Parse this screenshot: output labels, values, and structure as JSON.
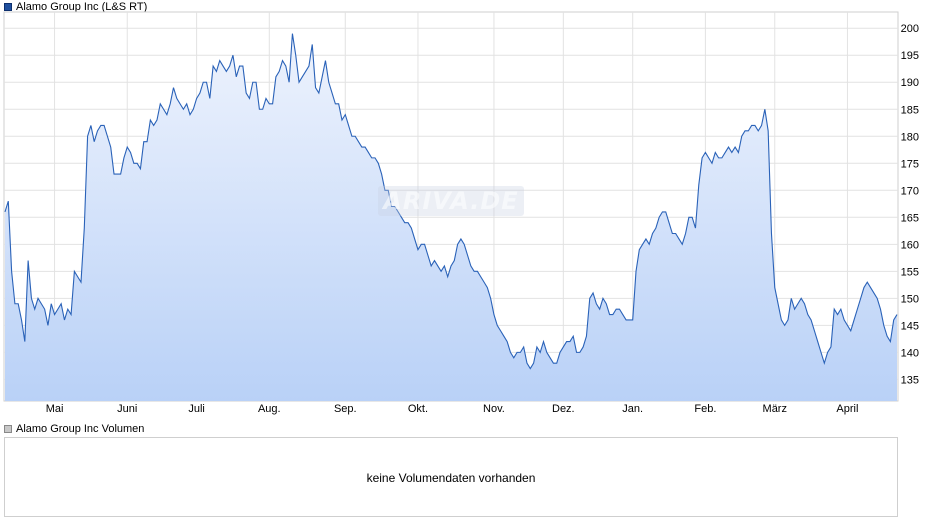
{
  "legend": {
    "price_label": "Alamo Group Inc (L&S RT)",
    "volume_label": "Alamo Group Inc Volumen"
  },
  "volume": {
    "message": "keine Volumendaten vorhanden"
  },
  "watermark": "ARIVA.DE",
  "chart_data": {
    "type": "area",
    "title": "",
    "xlabel": "",
    "ylabel": "",
    "ylim": [
      131,
      203
    ],
    "y_ticks": [
      135,
      140,
      145,
      150,
      155,
      160,
      165,
      170,
      175,
      180,
      185,
      190,
      195,
      200
    ],
    "x_ticks": [
      "Mai",
      "Juni",
      "Juli",
      "Aug.",
      "Sep.",
      "Okt.",
      "Nov.",
      "Dez.",
      "Jan.",
      "Feb.",
      "März",
      "April"
    ],
    "x_tick_index": [
      15,
      37,
      58,
      80,
      103,
      125,
      148,
      169,
      190,
      212,
      233,
      255
    ],
    "grid": true,
    "legend_position": "top-left",
    "colors": {
      "line": "#2a62b8",
      "fill_top": "#eef3fd",
      "fill_bottom": "#b9d1f7",
      "grid": "#e2e2e2"
    },
    "series": [
      {
        "values": [
          166,
          168,
          155,
          149,
          149,
          146,
          142,
          157,
          150,
          148,
          150,
          149,
          148,
          145,
          149,
          147,
          148,
          149,
          146,
          148,
          147,
          155,
          154,
          153,
          163,
          180,
          182,
          179,
          181,
          182,
          182,
          180,
          178,
          173,
          173,
          173,
          176,
          178,
          177,
          175,
          175,
          174,
          179,
          179,
          183,
          182,
          183,
          186,
          185,
          184,
          186,
          189,
          187,
          186,
          185,
          186,
          184,
          185,
          187,
          188,
          190,
          190,
          187,
          193,
          192,
          194,
          193,
          192,
          193,
          195,
          191,
          193,
          193,
          188,
          187,
          190,
          190,
          185,
          185,
          187,
          186,
          186,
          191,
          192,
          194,
          193,
          190,
          199,
          195,
          190,
          191,
          192,
          193,
          197,
          189,
          188,
          191,
          194,
          190,
          188,
          186,
          186,
          183,
          184,
          182,
          180,
          180,
          179,
          178,
          178,
          177,
          176,
          176,
          175,
          173,
          170,
          170,
          167,
          167,
          166,
          165,
          164,
          164,
          163,
          161,
          159,
          160,
          160,
          158,
          156,
          157,
          156,
          155,
          156,
          154,
          156,
          157,
          160,
          161,
          160,
          158,
          156,
          155,
          155,
          154,
          153,
          152,
          150,
          147,
          145,
          144,
          143,
          142,
          140,
          139,
          140,
          140,
          141,
          138,
          137,
          138,
          141,
          140,
          142,
          140,
          139,
          138,
          138,
          140,
          141,
          142,
          142,
          143,
          140,
          140,
          141,
          143,
          150,
          151,
          149,
          148,
          150,
          149,
          147,
          147,
          148,
          148,
          147,
          146,
          146,
          146,
          155,
          159,
          160,
          161,
          160,
          162,
          163,
          165,
          166,
          166,
          164,
          162,
          162,
          161,
          160,
          162,
          165,
          165,
          163,
          171,
          176,
          177,
          176,
          175,
          177,
          176,
          176,
          177,
          178,
          177,
          178,
          177,
          180,
          181,
          181,
          182,
          182,
          181,
          182,
          185,
          181,
          162,
          152,
          149,
          146,
          145,
          146,
          150,
          148,
          149,
          150,
          149,
          147,
          146,
          144,
          142,
          140,
          138,
          140,
          141,
          148,
          147,
          148,
          146,
          145,
          144,
          146,
          148,
          150,
          152,
          153,
          152,
          151,
          150,
          148,
          145,
          143,
          142,
          146,
          147
        ]
      }
    ]
  }
}
